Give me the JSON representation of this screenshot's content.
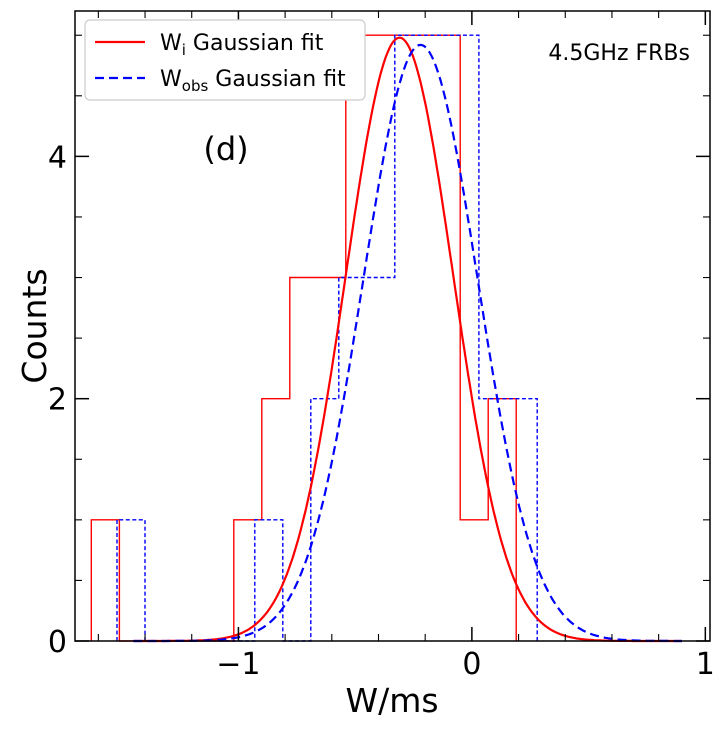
{
  "chart_data": {
    "type": "histogram",
    "panel_label": "(d)",
    "annotation": "4.5GHz FRBs",
    "xlabel": "W/ms",
    "ylabel": "Counts",
    "xlim": [
      -1.7,
      1.02
    ],
    "ylim": [
      0,
      5.2
    ],
    "x_ticks": [
      -1,
      0,
      1
    ],
    "x_tick_labels": [
      "−1",
      "0",
      "1"
    ],
    "y_ticks": [
      0,
      2,
      4
    ],
    "y_tick_labels": [
      "0",
      "2",
      "4"
    ],
    "legend": {
      "position": "top-left",
      "entries": [
        {
          "base": "W",
          "sub": "i",
          "suffix": " Gaussian fit",
          "color": "#ff0000",
          "style": "solid"
        },
        {
          "base": "W",
          "sub": "obs",
          "suffix": " Gaussian fit",
          "color": "#0000ff",
          "style": "dashed"
        }
      ]
    },
    "series": [
      {
        "name": "W_i histogram",
        "kind": "step",
        "color": "#ff0000",
        "style": "solid",
        "edges": [
          -1.63,
          -1.51,
          -1.39,
          -1.27,
          -1.14,
          -1.02,
          -0.9,
          -0.78,
          -0.66,
          -0.54,
          -0.41,
          -0.29,
          -0.17,
          -0.05,
          0.07,
          0.19
        ],
        "counts": [
          1,
          0,
          0,
          0,
          0,
          1,
          2,
          3,
          3,
          5,
          5,
          5,
          5,
          1,
          2
        ]
      },
      {
        "name": "W_obs histogram",
        "kind": "step",
        "color": "#0000ff",
        "style": "dashed",
        "edges": [
          -1.52,
          -1.4,
          -1.28,
          -1.17,
          -1.05,
          -0.93,
          -0.81,
          -0.69,
          -0.57,
          -0.45,
          -0.33,
          -0.21,
          -0.09,
          0.03,
          0.16,
          0.28
        ],
        "counts": [
          1,
          0,
          0,
          0,
          0,
          1,
          0,
          2,
          3,
          3,
          5,
          5,
          5,
          2,
          2
        ]
      },
      {
        "name": "W_i Gaussian fit",
        "kind": "gaussian",
        "color": "#ff0000",
        "style": "solid",
        "amplitude": 4.98,
        "mean": -0.31,
        "sigma": 0.23,
        "x_range": [
          -1.45,
          0.9
        ]
      },
      {
        "name": "W_obs Gaussian fit",
        "kind": "gaussian",
        "color": "#0000ff",
        "style": "dashed",
        "amplitude": 4.92,
        "mean": -0.22,
        "sigma": 0.245,
        "x_range": [
          -1.45,
          0.9
        ]
      }
    ]
  }
}
